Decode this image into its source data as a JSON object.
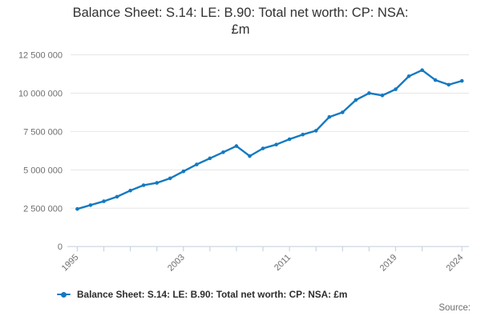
{
  "title": {
    "line1": "Balance Sheet: S.14: LE: B.90: Total net worth: CP: NSA:",
    "line2": "£m"
  },
  "source_label": "Source:",
  "colors": {
    "line": "#1379c2",
    "grid": "#e6e6e6",
    "axis": "#c9d3e0",
    "tick_text": "#6e6e6e",
    "title_text": "#313131"
  },
  "chart_data": {
    "type": "line",
    "title": "Balance Sheet: S.14: LE: B.90: Total net worth: CP: NSA: £m",
    "xlabel": "",
    "ylabel": "",
    "x": [
      1995,
      1996,
      1997,
      1998,
      1999,
      2000,
      2001,
      2002,
      2003,
      2004,
      2005,
      2006,
      2007,
      2008,
      2009,
      2010,
      2011,
      2012,
      2013,
      2014,
      2015,
      2016,
      2017,
      2018,
      2019,
      2020,
      2021,
      2022,
      2023,
      2024
    ],
    "series": [
      {
        "name": "Balance Sheet: S.14: LE: B.90: Total net worth: CP: NSA: £m",
        "values": [
          2450000,
          2700000,
          2950000,
          3250000,
          3650000,
          4000000,
          4150000,
          4450000,
          4900000,
          5350000,
          5750000,
          6150000,
          6550000,
          5900000,
          6400000,
          6650000,
          7000000,
          7300000,
          7550000,
          8450000,
          8750000,
          9550000,
          10000000,
          9850000,
          10250000,
          11100000,
          11500000,
          10850000,
          10550000,
          10800000
        ]
      }
    ],
    "ylim": [
      0,
      12500000
    ],
    "yticks": [
      0,
      2500000,
      5000000,
      7500000,
      10000000,
      12500000
    ],
    "ytick_labels": [
      "0",
      "2 500 000",
      "5 000 000",
      "7 500 000",
      "10 000 000",
      "12 500 000"
    ],
    "xticks": [
      1995,
      1997,
      1999,
      2001,
      2003,
      2005,
      2007,
      2009,
      2011,
      2013,
      2015,
      2017,
      2019,
      2021,
      2024
    ],
    "xtick_labels": [
      1995,
      2003,
      2011,
      2019,
      2024
    ],
    "grid": true,
    "legend_position": "bottom",
    "marker": "circle"
  }
}
